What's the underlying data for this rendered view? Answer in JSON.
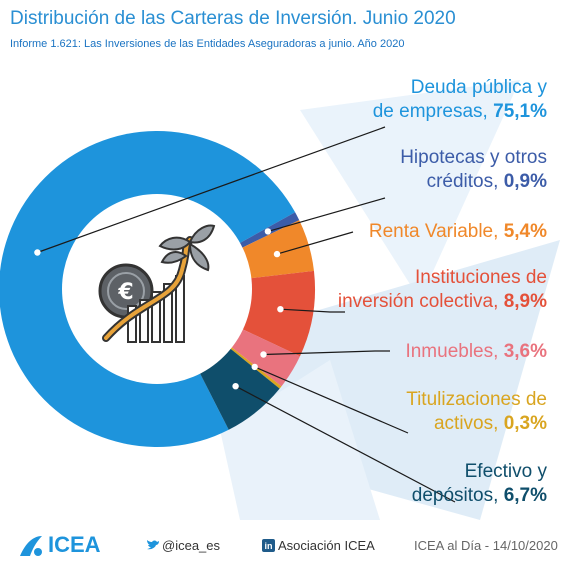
{
  "header": {
    "title": "Distribución de las Carteras de Inversión. Junio 2020",
    "subtitle": "Informe 1.621: Las Inversiones de las Entidades Aseguradoras a junio. Año 2020"
  },
  "chart_data": {
    "type": "pie",
    "donut": true,
    "slices": [
      {
        "label_line1": "Deuda pública y",
        "label_line2": "de empresas,",
        "value_text": "75,1%",
        "value": 75.1,
        "color": "#1e94dc"
      },
      {
        "label_line1": "Hipotecas y otros",
        "label_line2": "créditos,",
        "value_text": "0,9%",
        "value": 0.9,
        "color": "#3c5ca8"
      },
      {
        "label_line1": "Renta Variable,",
        "label_line2": "",
        "value_text": "5,4%",
        "value": 5.4,
        "color": "#f0882a"
      },
      {
        "label_line1": "Instituciones de",
        "label_line2": "inversión colectiva,",
        "value_text": "8,9%",
        "value": 8.9,
        "color": "#e4513a"
      },
      {
        "label_line1": "Inmuebles,",
        "label_line2": "",
        "value_text": "3,6%",
        "value": 3.6,
        "color": "#e9737e"
      },
      {
        "label_line1": "Titulizaciones de",
        "label_line2": "activos,",
        "value_text": "0,3%",
        "value": 0.3,
        "color": "#d9a520"
      },
      {
        "label_line1": "Efectivo y",
        "label_line2": "depósitos,",
        "value_text": "6,7%",
        "value": 6.7,
        "color": "#0f4e6b"
      }
    ]
  },
  "footer": {
    "logo": "ICEA",
    "twitter": "@icea_es",
    "linkedin": "Asociación ICEA",
    "date": "ICEA al Día - 14/10/2020"
  },
  "icons": [
    "euro-coin-icon",
    "plant-growth-icon",
    "twitter-icon",
    "linkedin-icon",
    "icea-logo-icon"
  ]
}
